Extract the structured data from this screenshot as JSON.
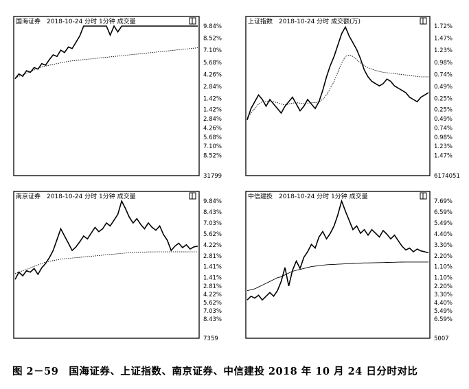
{
  "caption": "图 2－59　国海证券、上证指数、南京证券、中信建投 2018 年 10 月 24 日分时对比",
  "chart_data": [
    {
      "type": "line",
      "title": "国海证券　2018-10-24 分时 1分钟 成交量",
      "corner_icon": "window-restore-icon",
      "right_ticks": [
        "9.84%",
        "8.52%",
        "7.10%",
        "5.68%",
        "4.26%",
        "2.84%",
        "1.42%",
        "1.42%",
        "2.84%",
        "4.26%",
        "5.68%",
        "7.10%",
        "8.52%",
        "31799"
      ],
      "y_range_pct": [
        -9.84,
        9.84
      ],
      "series": [
        {
          "values": [
            3.2,
            3.8,
            3.5,
            4.2,
            4.0,
            4.6,
            4.4,
            5.1,
            4.9,
            5.6,
            6.2,
            6.0,
            6.8,
            6.5,
            7.2,
            7.0,
            7.8,
            8.6,
            9.84,
            9.84,
            9.84,
            9.84,
            9.84,
            9.84,
            9.84,
            8.7,
            9.84,
            9.1,
            9.84,
            9.84,
            9.84,
            9.84,
            9.84,
            9.84,
            9.84,
            9.84,
            9.84,
            9.84,
            9.84,
            9.84,
            9.84,
            9.84,
            9.84,
            9.84,
            9.84,
            9.84,
            9.84,
            9.84,
            9.84
          ]
        },
        {
          "values": [
            3.3,
            3.5,
            3.7,
            3.9,
            4.1,
            4.3,
            4.5,
            4.7,
            4.8,
            4.9,
            5.0,
            5.1,
            5.2,
            5.3,
            5.4,
            5.45,
            5.5,
            5.55,
            5.6,
            5.65,
            5.7,
            5.75,
            5.8,
            5.85,
            5.9,
            5.95,
            6.0,
            6.05,
            6.1,
            6.15,
            6.2,
            6.25,
            6.3,
            6.35,
            6.4,
            6.45,
            6.5,
            6.55,
            6.6,
            6.65,
            6.7,
            6.75,
            6.8,
            6.85,
            6.9,
            6.95,
            7.0,
            7.05,
            7.1
          ]
        }
      ]
    },
    {
      "type": "line",
      "title": "上证指数　2018-10-24 分时 成交额(万)",
      "corner_icon": "window-restore-icon",
      "right_ticks": [
        "1.72%",
        "1.47%",
        "1.23%",
        "0.98%",
        "0.74%",
        "0.49%",
        "0.25%",
        "0.25%",
        "0.49%",
        "0.74%",
        "0.98%",
        "1.23%",
        "1.47%",
        "6174051"
      ],
      "y_range_pct": [
        -1.72,
        1.72
      ],
      "series": [
        {
          "values": [
            -0.35,
            -0.1,
            0.05,
            0.2,
            0.1,
            -0.05,
            0.1,
            0.0,
            -0.1,
            -0.2,
            -0.05,
            0.05,
            0.15,
            0.0,
            -0.15,
            -0.05,
            0.1,
            0.0,
            -0.1,
            0.05,
            0.3,
            0.6,
            0.85,
            1.05,
            1.3,
            1.55,
            1.7,
            1.5,
            1.35,
            1.2,
            1.0,
            0.75,
            0.6,
            0.5,
            0.45,
            0.4,
            0.45,
            0.55,
            0.5,
            0.4,
            0.35,
            0.3,
            0.25,
            0.15,
            0.1,
            0.05,
            0.15,
            0.2,
            0.25
          ]
        },
        {
          "values": [
            -0.3,
            -0.2,
            -0.1,
            0.0,
            0.05,
            0.05,
            0.06,
            0.05,
            0.03,
            0.0,
            -0.02,
            0.0,
            0.02,
            0.03,
            0.02,
            0.01,
            0.02,
            0.03,
            0.03,
            0.05,
            0.1,
            0.2,
            0.35,
            0.5,
            0.7,
            0.9,
            1.05,
            1.08,
            1.05,
            0.98,
            0.9,
            0.85,
            0.8,
            0.77,
            0.74,
            0.72,
            0.7,
            0.69,
            0.68,
            0.67,
            0.66,
            0.65,
            0.64,
            0.63,
            0.62,
            0.61,
            0.6,
            0.6,
            0.6
          ]
        }
      ]
    },
    {
      "type": "line",
      "title": "南京证券　2018-10-24 分时 1分钟 成交量",
      "corner_icon": "window-restore-icon",
      "right_ticks": [
        "9.84%",
        "8.43%",
        "7.03%",
        "5.62%",
        "4.22%",
        "2.81%",
        "1.41%",
        "1.41%",
        "2.81%",
        "4.22%",
        "5.62%",
        "7.03%",
        "8.43%",
        "7359"
      ],
      "y_range_pct": [
        -9.84,
        9.84
      ],
      "series": [
        {
          "values": [
            -1.0,
            0.0,
            -0.5,
            0.2,
            0.0,
            0.5,
            -0.3,
            0.6,
            1.2,
            2.0,
            3.0,
            4.5,
            6.0,
            5.0,
            4.0,
            3.0,
            3.5,
            4.2,
            5.0,
            4.6,
            5.4,
            6.2,
            5.6,
            6.0,
            6.8,
            6.4,
            7.2,
            8.0,
            9.84,
            8.8,
            7.6,
            6.8,
            7.4,
            6.6,
            6.0,
            6.8,
            6.2,
            5.8,
            6.4,
            5.2,
            4.4,
            3.0,
            3.6,
            4.0,
            3.4,
            3.8,
            3.2,
            3.5,
            3.6
          ]
        },
        {
          "values": [
            -0.2,
            0.0,
            0.2,
            0.4,
            0.6,
            0.8,
            1.0,
            1.2,
            1.4,
            1.5,
            1.6,
            1.7,
            1.8,
            1.85,
            1.9,
            1.95,
            2.0,
            2.05,
            2.1,
            2.15,
            2.2,
            2.25,
            2.3,
            2.35,
            2.4,
            2.45,
            2.5,
            2.55,
            2.6,
            2.65,
            2.7,
            2.72,
            2.74,
            2.76,
            2.78,
            2.8,
            2.8,
            2.81,
            2.81,
            2.81,
            2.81,
            2.81,
            2.81,
            2.81,
            2.81,
            2.81,
            2.81,
            2.81,
            2.81
          ]
        }
      ]
    },
    {
      "type": "line",
      "title": "中信建投　2018-10-24 分时 1分钟 成交量",
      "corner_icon": "window-restore-icon",
      "right_ticks": [
        "7.69%",
        "6.59%",
        "5.49%",
        "4.40%",
        "3.30%",
        "2.20%",
        "1.10%",
        "1.10%",
        "2.20%",
        "3.30%",
        "4.40%",
        "5.49%",
        "6.59%",
        "5007"
      ],
      "y_range_pct": [
        -7.69,
        7.69
      ],
      "series": [
        {
          "values": [
            -3.0,
            -2.6,
            -2.8,
            -2.5,
            -3.0,
            -2.6,
            -2.2,
            -2.6,
            -2.0,
            -1.0,
            0.5,
            -1.5,
            0.2,
            1.2,
            0.4,
            1.6,
            2.2,
            3.0,
            2.6,
            3.8,
            4.4,
            3.6,
            4.2,
            5.0,
            6.2,
            7.69,
            6.6,
            5.6,
            4.6,
            5.0,
            4.2,
            4.6,
            4.0,
            4.6,
            4.2,
            3.8,
            4.5,
            4.1,
            3.6,
            4.0,
            3.4,
            2.8,
            2.4,
            2.6,
            2.2,
            2.5,
            2.3,
            2.2,
            2.1
          ]
        },
        {
          "values": [
            -2.0,
            -1.9,
            -1.8,
            -1.6,
            -1.4,
            -1.2,
            -1.0,
            -0.8,
            -0.6,
            -0.5,
            -0.3,
            -0.1,
            0.1,
            0.2,
            0.3,
            0.4,
            0.5,
            0.6,
            0.65,
            0.7,
            0.75,
            0.8,
            0.82,
            0.84,
            0.86,
            0.88,
            0.9,
            0.92,
            0.94,
            0.96,
            0.98,
            1.0,
            1.0,
            1.01,
            1.02,
            1.03,
            1.04,
            1.05,
            1.06,
            1.07,
            1.08,
            1.09,
            1.1,
            1.1,
            1.1,
            1.1,
            1.1,
            1.1,
            1.1
          ]
        }
      ]
    }
  ]
}
